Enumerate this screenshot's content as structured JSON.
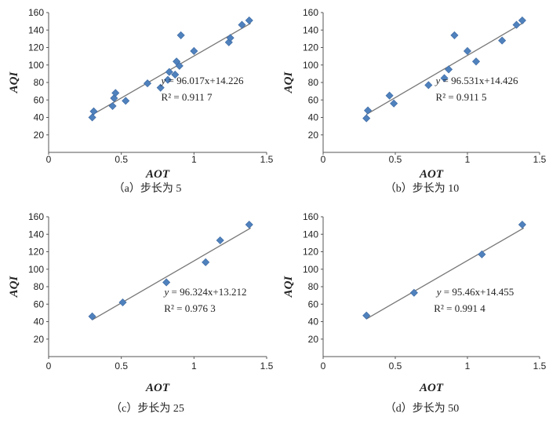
{
  "chart_data": [
    {
      "type": "scatter",
      "caption": "（a）步长为 5",
      "xlabel": "AOT",
      "ylabel": "AQI",
      "xlim": [
        0,
        1.5
      ],
      "ylim": [
        0,
        160
      ],
      "xticks": [
        "0",
        "0.5",
        "1",
        "1.5"
      ],
      "yticks": [
        "20",
        "40",
        "60",
        "80",
        "100",
        "120",
        "140",
        "160"
      ],
      "equation_prefix": "y",
      "equation_rest": " = 96.017x+14.226",
      "r2_label": "R² = 0.911 7",
      "trend": {
        "slope": 96.017,
        "intercept": 14.226,
        "x_range": [
          0.3,
          1.39
        ]
      },
      "points": [
        {
          "x": 0.3,
          "y": 40
        },
        {
          "x": 0.31,
          "y": 47
        },
        {
          "x": 0.44,
          "y": 53
        },
        {
          "x": 0.45,
          "y": 62
        },
        {
          "x": 0.46,
          "y": 68
        },
        {
          "x": 0.53,
          "y": 59
        },
        {
          "x": 0.68,
          "y": 79
        },
        {
          "x": 0.77,
          "y": 74
        },
        {
          "x": 0.82,
          "y": 83
        },
        {
          "x": 0.83,
          "y": 92
        },
        {
          "x": 0.87,
          "y": 89
        },
        {
          "x": 0.88,
          "y": 104
        },
        {
          "x": 0.9,
          "y": 99
        },
        {
          "x": 0.91,
          "y": 134
        },
        {
          "x": 1.0,
          "y": 116
        },
        {
          "x": 1.24,
          "y": 126
        },
        {
          "x": 1.25,
          "y": 131
        },
        {
          "x": 1.33,
          "y": 146
        },
        {
          "x": 1.38,
          "y": 151
        }
      ]
    },
    {
      "type": "scatter",
      "caption": "（b）步长为 10",
      "xlabel": "AOT",
      "ylabel": "AQI",
      "xlim": [
        0,
        1.5
      ],
      "ylim": [
        0,
        160
      ],
      "xticks": [
        "0",
        "0.5",
        "1",
        "1.5"
      ],
      "yticks": [
        "20",
        "40",
        "60",
        "80",
        "100",
        "120",
        "140",
        "160"
      ],
      "equation_prefix": "y",
      "equation_rest": " = 96.531x+14.426",
      "r2_label": "R² = 0.911 5",
      "trend": {
        "slope": 96.531,
        "intercept": 14.426,
        "x_range": [
          0.3,
          1.39
        ]
      },
      "points": [
        {
          "x": 0.3,
          "y": 39
        },
        {
          "x": 0.31,
          "y": 48
        },
        {
          "x": 0.46,
          "y": 65
        },
        {
          "x": 0.49,
          "y": 56
        },
        {
          "x": 0.73,
          "y": 77
        },
        {
          "x": 0.84,
          "y": 85
        },
        {
          "x": 0.87,
          "y": 95
        },
        {
          "x": 0.91,
          "y": 134
        },
        {
          "x": 1.0,
          "y": 116
        },
        {
          "x": 1.06,
          "y": 104
        },
        {
          "x": 1.24,
          "y": 128
        },
        {
          "x": 1.34,
          "y": 146
        },
        {
          "x": 1.38,
          "y": 151
        }
      ]
    },
    {
      "type": "scatter",
      "caption": "（c）步长为 25",
      "xlabel": "AOT",
      "ylabel": "AQI",
      "xlim": [
        0,
        1.5
      ],
      "ylim": [
        0,
        160
      ],
      "xticks": [
        "0",
        "0.5",
        "1",
        "1.5"
      ],
      "yticks": [
        "20",
        "40",
        "60",
        "80",
        "100",
        "120",
        "140",
        "160"
      ],
      "equation_prefix": "y",
      "equation_rest": " = 96.324x+13.212",
      "r2_label": "R² = 0.976 3",
      "trend": {
        "slope": 96.324,
        "intercept": 13.212,
        "x_range": [
          0.3,
          1.39
        ]
      },
      "points": [
        {
          "x": 0.3,
          "y": 46
        },
        {
          "x": 0.51,
          "y": 62
        },
        {
          "x": 0.81,
          "y": 85
        },
        {
          "x": 1.08,
          "y": 108
        },
        {
          "x": 1.18,
          "y": 133
        },
        {
          "x": 1.38,
          "y": 151
        }
      ]
    },
    {
      "type": "scatter",
      "caption": "（d）步长为 50",
      "xlabel": "AOT",
      "ylabel": "AQI",
      "xlim": [
        0,
        1.5
      ],
      "ylim": [
        0,
        160
      ],
      "xticks": [
        "0",
        "0.5",
        "1",
        "1.5"
      ],
      "yticks": [
        "20",
        "40",
        "60",
        "80",
        "100",
        "120",
        "140",
        "160"
      ],
      "equation_prefix": "y",
      "equation_rest": " = 95.46x+14.455",
      "r2_label": "R² = 0.991 4",
      "trend": {
        "slope": 95.46,
        "intercept": 14.455,
        "x_range": [
          0.3,
          1.39
        ]
      },
      "points": [
        {
          "x": 0.3,
          "y": 47
        },
        {
          "x": 0.63,
          "y": 73
        },
        {
          "x": 1.1,
          "y": 117
        },
        {
          "x": 1.38,
          "y": 151
        }
      ]
    }
  ]
}
